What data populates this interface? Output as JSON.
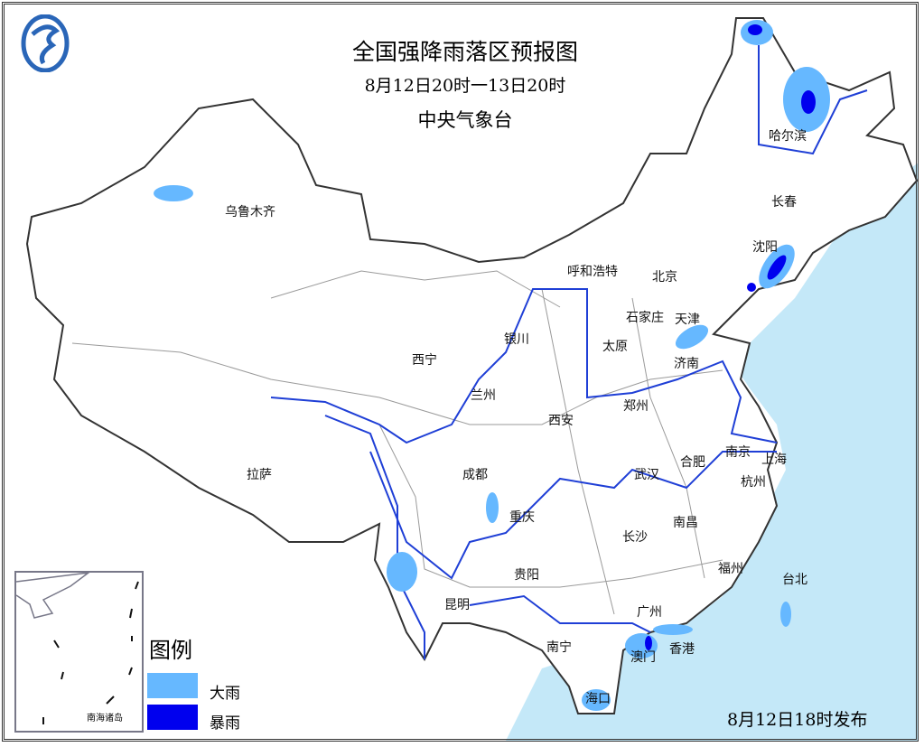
{
  "header": {
    "title": "全国强降雨落区预报图",
    "period": "8月12日20时一13日20时",
    "agency": "中央气象台",
    "logo": "cma-logo"
  },
  "cities": [
    {
      "name": "乌鲁木齐",
      "p": [
        277,
        234
      ]
    },
    {
      "name": "哈尔滨",
      "p": [
        872,
        150
      ]
    },
    {
      "name": "长春",
      "p": [
        868,
        223
      ]
    },
    {
      "name": "沈阳",
      "p": [
        847,
        273
      ]
    },
    {
      "name": "呼和浩特",
      "p": [
        656,
        300
      ]
    },
    {
      "name": "北京",
      "p": [
        736,
        306
      ]
    },
    {
      "name": "天津",
      "p": [
        761,
        353
      ]
    },
    {
      "name": "石家庄",
      "p": [
        714,
        351
      ]
    },
    {
      "name": "太原",
      "p": [
        681,
        383
      ]
    },
    {
      "name": "济南",
      "p": [
        760,
        402
      ]
    },
    {
      "name": "银川",
      "p": [
        572,
        375
      ]
    },
    {
      "name": "西宁",
      "p": [
        470,
        398
      ]
    },
    {
      "name": "兰州",
      "p": [
        535,
        437
      ]
    },
    {
      "name": "西安",
      "p": [
        621,
        465
      ]
    },
    {
      "name": "郑州",
      "p": [
        704,
        449
      ]
    },
    {
      "name": "南京",
      "p": [
        817,
        500
      ]
    },
    {
      "name": "合肥",
      "p": [
        767,
        511
      ]
    },
    {
      "name": "上海",
      "p": [
        857,
        508
      ]
    },
    {
      "name": "武汉",
      "p": [
        716,
        525
      ]
    },
    {
      "name": "杭州",
      "p": [
        834,
        533
      ]
    },
    {
      "name": "成都",
      "p": [
        526,
        525
      ]
    },
    {
      "name": "拉萨",
      "p": [
        287,
        525
      ]
    },
    {
      "name": "重庆",
      "p": [
        578,
        572
      ]
    },
    {
      "name": "南昌",
      "p": [
        759,
        578
      ]
    },
    {
      "name": "长沙",
      "p": [
        703,
        594
      ]
    },
    {
      "name": "福州",
      "p": [
        809,
        629
      ]
    },
    {
      "name": "台北",
      "p": [
        880,
        641
      ]
    },
    {
      "name": "贵阳",
      "p": [
        583,
        636
      ]
    },
    {
      "name": "昆明",
      "p": [
        506,
        669
      ]
    },
    {
      "name": "广州",
      "p": [
        719,
        677
      ]
    },
    {
      "name": "南宁",
      "p": [
        619,
        716
      ]
    },
    {
      "name": "澳门",
      "p": [
        712,
        727
      ]
    },
    {
      "name": "香港",
      "p": [
        755,
        718
      ]
    },
    {
      "name": "海口",
      "p": [
        662,
        773
      ]
    }
  ],
  "legend": {
    "title": "图例",
    "items": [
      {
        "label": "大雨",
        "color": "#66b8ff"
      },
      {
        "label": "暴雨",
        "color": "#0000ee"
      }
    ]
  },
  "inset": {
    "label": "南海诸岛"
  },
  "issued": "8月12日18时发布",
  "colors": {
    "sea": "#c4e8f8",
    "border": "#333333",
    "province": "#9a9a9a",
    "river": "#1f3fd6"
  }
}
